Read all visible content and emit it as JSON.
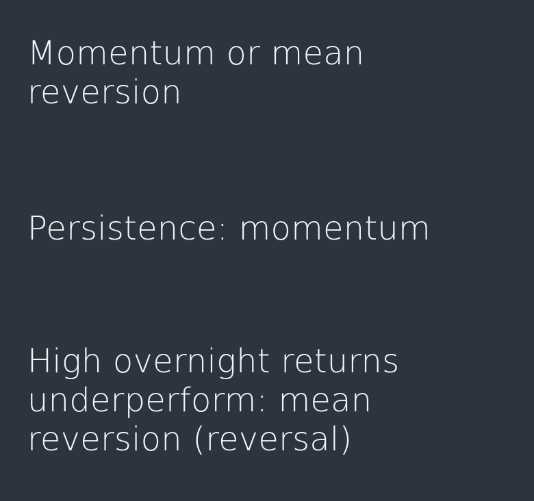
{
  "slide": {
    "background_color": "#2c3440",
    "text_color": "#f2f4f6",
    "blocks": [
      "Momentum or mean reversion",
      "Persistence: momentum",
      "High overnight returns underperform: mean reversion (reversal)"
    ]
  }
}
